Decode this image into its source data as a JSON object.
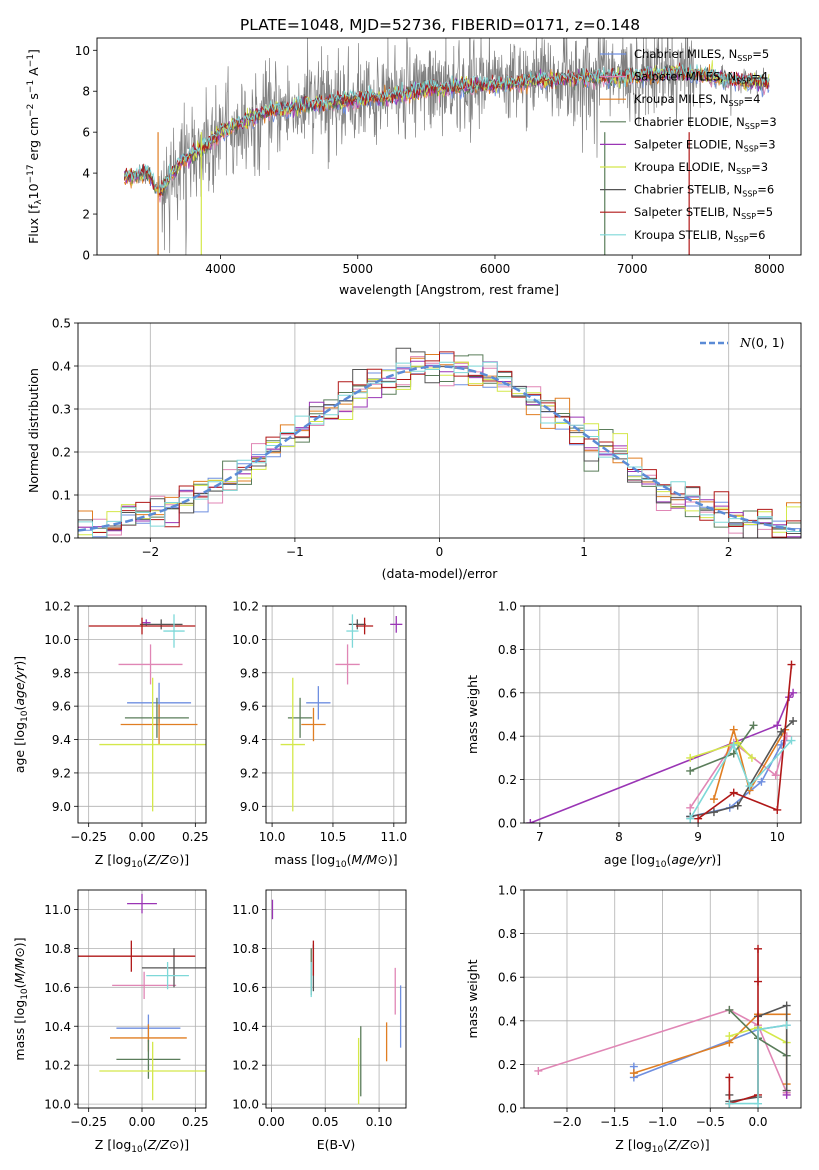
{
  "title": "PLATE=1048, MJD=52736, FIBERID=0171, z=0.148",
  "colors": {
    "Chabrier MILES": "#6f8fe0",
    "Salpeter MILES": "#e086b5",
    "Kroupa MILES": "#e07e22",
    "Chabrier ELODIE": "#5a7d5a",
    "Salpeter ELODIE": "#9a35b5",
    "Kroupa ELODIE": "#d4e84a",
    "Chabrier STELIB": "#555555",
    "Salpeter STELIB": "#b01818",
    "Kroupa STELIB": "#7ed8d8",
    "data": "#808080",
    "normal": "#5b8bd6"
  },
  "chart_data": [
    {
      "id": "spectrum",
      "type": "line",
      "xlabel": "wavelength [Angstrom, rest frame]",
      "ylabel_parts": [
        "Flux [f",
        "λ",
        "10",
        "−17",
        " erg cm",
        "−2",
        " s",
        "−1",
        " A",
        "−1",
        "]"
      ],
      "xlim": [
        3100,
        8230
      ],
      "ylim": [
        0,
        10.6
      ],
      "xticks": [
        4000,
        5000,
        6000,
        7000,
        8000
      ],
      "yticks": [
        0,
        2,
        4,
        6,
        8,
        10
      ],
      "continuum": [
        [
          3300,
          3.8
        ],
        [
          3480,
          4.0
        ],
        [
          3550,
          3.0
        ],
        [
          3700,
          4.5
        ],
        [
          3900,
          5.3
        ],
        [
          4000,
          6.0
        ],
        [
          4300,
          6.9
        ],
        [
          4600,
          7.3
        ],
        [
          5000,
          7.6
        ],
        [
          5300,
          7.8
        ],
        [
          5500,
          8.1
        ],
        [
          6000,
          8.3
        ],
        [
          6500,
          8.6
        ],
        [
          7000,
          8.7
        ],
        [
          7300,
          8.9
        ],
        [
          7500,
          8.8
        ],
        [
          7800,
          8.5
        ],
        [
          8000,
          8.4
        ]
      ],
      "legend": [
        {
          "sub": "Chabrier MILES, N",
          "n": "5"
        },
        {
          "sub": "Salpeter MILES, N",
          "n": "4"
        },
        {
          "sub": "Kroupa MILES, N",
          "n": "4"
        },
        {
          "sub": "Chabrier ELODIE, N",
          "n": "3"
        },
        {
          "sub": "Salpeter ELODIE, N",
          "n": "3"
        },
        {
          "sub": "Kroupa ELODIE, N",
          "n": "3"
        },
        {
          "sub": "Chabrier STELIB, N",
          "n": "6"
        },
        {
          "sub": "Salpeter STELIB, N",
          "n": "5"
        },
        {
          "sub": "Kroupa STELIB, N",
          "n": "6"
        }
      ],
      "legend_sub": "SSP",
      "legend_models": [
        "Chabrier MILES",
        "Salpeter MILES",
        "Kroupa MILES",
        "Chabrier ELODIE",
        "Salpeter ELODIE",
        "Kroupa ELODIE",
        "Chabrier STELIB",
        "Salpeter STELIB",
        "Kroupa STELIB"
      ],
      "legend_placement": "top-right"
    },
    {
      "id": "residuals",
      "type": "histogram",
      "xlabel": "(data-model)/error",
      "ylabel": "Normed distribution",
      "xlim": [
        -2.5,
        2.5
      ],
      "ylim": [
        0,
        0.5
      ],
      "xticks": [
        -2,
        -1,
        0,
        1,
        2
      ],
      "yticks": [
        0.0,
        0.1,
        0.2,
        0.3,
        0.4,
        0.5
      ],
      "bin_width": 0.1,
      "legend_label": "N(0, 1)",
      "grid": true
    },
    {
      "id": "z-age",
      "type": "errorbar",
      "xlabel": "Z [log10(Z/Z⊙)]",
      "ylabel": "age  [log10(age/yr)]",
      "xlim": [
        -0.3,
        0.3
      ],
      "ylim": [
        8.9,
        10.2
      ],
      "xticks": [
        -0.25,
        0.0,
        0.25
      ],
      "yticks": [
        9.0,
        9.2,
        9.4,
        9.6,
        9.8,
        10.0,
        10.2
      ],
      "points": [
        {
          "model": "Chabrier MILES",
          "x": 0.08,
          "xe": 0.15,
          "y": 9.62,
          "ye": 0.12
        },
        {
          "model": "Salpeter MILES",
          "x": 0.04,
          "xe": 0.15,
          "y": 9.85,
          "ye": 0.12
        },
        {
          "model": "Kroupa MILES",
          "x": 0.08,
          "xe": 0.18,
          "y": 9.49,
          "ye": 0.12
        },
        {
          "model": "Chabrier ELODIE",
          "x": 0.07,
          "xe": 0.15,
          "y": 9.53,
          "ye": 0.12
        },
        {
          "model": "Salpeter ELODIE",
          "x": 0.02,
          "xe": 0.02,
          "y": 10.1,
          "ye": 0.02
        },
        {
          "model": "Kroupa ELODIE",
          "x": 0.05,
          "xe": 0.25,
          "y": 9.37,
          "ye": 0.4
        },
        {
          "model": "Chabrier STELIB",
          "x": 0.09,
          "xe": 0.1,
          "y": 10.09,
          "ye": 0.03
        },
        {
          "model": "Salpeter STELIB",
          "x": 0.0,
          "xe": 0.25,
          "y": 10.08,
          "ye": 0.05
        },
        {
          "model": "Kroupa STELIB",
          "x": 0.15,
          "xe": 0.05,
          "y": 10.05,
          "ye": 0.1
        }
      ]
    },
    {
      "id": "mass-age",
      "type": "errorbar",
      "xlabel": "mass [log10(M/M⊙)]",
      "ylabel": "",
      "xlim": [
        9.95,
        11.1
      ],
      "ylim": [
        8.9,
        10.2
      ],
      "xticks": [
        10.0,
        10.5,
        11.0
      ],
      "yticks": [
        9.0,
        9.2,
        9.4,
        9.6,
        9.8,
        10.0,
        10.2
      ],
      "points": [
        {
          "model": "Chabrier MILES",
          "x": 10.38,
          "xe": 0.1,
          "y": 9.62,
          "ye": 0.1
        },
        {
          "model": "Salpeter MILES",
          "x": 10.62,
          "xe": 0.1,
          "y": 9.85,
          "ye": 0.12
        },
        {
          "model": "Kroupa MILES",
          "x": 10.34,
          "xe": 0.1,
          "y": 9.49,
          "ye": 0.1
        },
        {
          "model": "Chabrier ELODIE",
          "x": 10.23,
          "xe": 0.1,
          "y": 9.53,
          "ye": 0.12
        },
        {
          "model": "Salpeter ELODIE",
          "x": 11.02,
          "xe": 0.05,
          "y": 10.09,
          "ye": 0.05
        },
        {
          "model": "Kroupa ELODIE",
          "x": 10.17,
          "xe": 0.1,
          "y": 9.37,
          "ye": 0.4
        },
        {
          "model": "Chabrier STELIB",
          "x": 10.7,
          "xe": 0.07,
          "y": 10.09,
          "ye": 0.03
        },
        {
          "model": "Salpeter STELIB",
          "x": 10.76,
          "xe": 0.07,
          "y": 10.08,
          "ye": 0.05
        },
        {
          "model": "Kroupa STELIB",
          "x": 10.66,
          "xe": 0.05,
          "y": 10.05,
          "ye": 0.1
        }
      ]
    },
    {
      "id": "age-weight",
      "type": "line",
      "xlabel": "age  [log10(age/yr)]",
      "ylabel": "mass weight",
      "xlim": [
        6.8,
        10.3
      ],
      "ylim": [
        0,
        1
      ],
      "xticks": [
        7,
        8,
        9,
        10
      ],
      "yticks": [
        0.0,
        0.2,
        0.4,
        0.6,
        0.8,
        1.0
      ],
      "lines": [
        {
          "model": "Salpeter ELODIE",
          "x": [
            6.88,
            10.0,
            10.15,
            10.2
          ],
          "y": [
            0.0,
            0.45,
            0.58,
            0.6
          ]
        },
        {
          "model": "Chabrier MILES",
          "x": [
            8.9,
            9.4,
            9.8,
            10.05,
            10.1
          ],
          "y": [
            0.03,
            0.07,
            0.19,
            0.36,
            0.38
          ]
        },
        {
          "model": "Salpeter MILES",
          "x": [
            8.9,
            9.45,
            9.98,
            10.12
          ],
          "y": [
            0.07,
            0.37,
            0.22,
            0.4
          ]
        },
        {
          "model": "Kroupa MILES",
          "x": [
            9.2,
            9.45,
            9.65,
            10.1
          ],
          "y": [
            0.11,
            0.43,
            0.15,
            0.43
          ]
        },
        {
          "model": "Chabrier ELODIE",
          "x": [
            8.9,
            9.45,
            9.7
          ],
          "y": [
            0.24,
            0.32,
            0.45
          ]
        },
        {
          "model": "Kroupa ELODIE",
          "x": [
            8.9,
            9.5,
            9.68
          ],
          "y": [
            0.3,
            0.37,
            0.3
          ]
        },
        {
          "model": "Chabrier STELIB",
          "x": [
            8.9,
            9.2,
            9.5,
            10.05,
            10.2
          ],
          "y": [
            0.03,
            0.05,
            0.08,
            0.42,
            0.47
          ]
        },
        {
          "model": "Salpeter STELIB",
          "x": [
            9.0,
            9.45,
            10.0,
            10.18
          ],
          "y": [
            0.02,
            0.14,
            0.06,
            0.73
          ]
        },
        {
          "model": "Kroupa STELIB",
          "x": [
            8.9,
            9.45,
            9.65,
            10.18
          ],
          "y": [
            0.02,
            0.36,
            0.17,
            0.38
          ]
        }
      ]
    },
    {
      "id": "z-mass",
      "type": "errorbar",
      "xlabel": "Z [log10(Z/Z⊙)]",
      "ylabel": "mass [log10(M/M⊙)]",
      "xlim": [
        -0.3,
        0.3
      ],
      "ylim": [
        9.98,
        11.1
      ],
      "xticks": [
        -0.25,
        0.0,
        0.25
      ],
      "yticks": [
        10.0,
        10.2,
        10.4,
        10.6,
        10.8,
        11.0
      ],
      "points": [
        {
          "model": "Chabrier MILES",
          "x": 0.03,
          "xe": 0.15,
          "y": 10.39,
          "ye": 0.07
        },
        {
          "model": "Salpeter MILES",
          "x": 0.01,
          "xe": 0.15,
          "y": 10.61,
          "ye": 0.07
        },
        {
          "model": "Kroupa MILES",
          "x": 0.03,
          "xe": 0.18,
          "y": 10.34,
          "ye": 0.07
        },
        {
          "model": "Chabrier ELODIE",
          "x": 0.03,
          "xe": 0.15,
          "y": 10.23,
          "ye": 0.1
        },
        {
          "model": "Salpeter ELODIE",
          "x": 0.0,
          "xe": 0.07,
          "y": 11.03,
          "ye": 0.05
        },
        {
          "model": "Kroupa ELODIE",
          "x": 0.05,
          "xe": 0.25,
          "y": 10.17,
          "ye": 0.15
        },
        {
          "model": "Chabrier STELIB",
          "x": 0.15,
          "xe": 0.15,
          "y": 10.7,
          "ye": 0.1
        },
        {
          "model": "Salpeter STELIB",
          "x": -0.05,
          "xe": 0.3,
          "y": 10.76,
          "ye": 0.08
        },
        {
          "model": "Kroupa STELIB",
          "x": 0.12,
          "xe": 0.1,
          "y": 10.66,
          "ye": 0.07
        }
      ]
    },
    {
      "id": "ebv-mass",
      "type": "errorbar",
      "xlabel": "E(B-V)",
      "ylabel": "",
      "xlim": [
        -0.005,
        0.125
      ],
      "ylim": [
        9.98,
        11.1
      ],
      "xticks": [
        0.0,
        0.05,
        0.1
      ],
      "yticks": [
        10.0,
        10.2,
        10.4,
        10.6,
        10.8,
        11.0
      ],
      "points": [
        {
          "model": "Chabrier MILES",
          "x": 0.12,
          "xe": 0.0,
          "y": 10.45,
          "ye": 0.16
        },
        {
          "model": "Salpeter MILES",
          "x": 0.115,
          "xe": 0.0,
          "y": 10.58,
          "ye": 0.12
        },
        {
          "model": "Kroupa MILES",
          "x": 0.107,
          "xe": 0.0,
          "y": 10.32,
          "ye": 0.1
        },
        {
          "model": "Chabrier ELODIE",
          "x": 0.037,
          "xe": 0.0,
          "y": 10.68,
          "ye": 0.12
        },
        {
          "model": "Salpeter ELODIE",
          "x": 0.001,
          "xe": 0.0,
          "y": 11.0,
          "ye": 0.05
        },
        {
          "model": "Kroupa ELODIE",
          "x": 0.081,
          "xe": 0.0,
          "y": 10.17,
          "ye": 0.17
        },
        {
          "model": "Chabrier STELIB",
          "x": 0.039,
          "xe": 0.0,
          "y": 10.7,
          "ye": 0.12
        },
        {
          "model": "Salpeter STELIB",
          "x": 0.039,
          "xe": 0.0,
          "y": 10.75,
          "ye": 0.09
        },
        {
          "model": "Kroupa STELIB",
          "x": 0.037,
          "xe": 0.0,
          "y": 10.64,
          "ye": 0.09
        },
        {
          "model": "Chabrier ELODIE",
          "x": 0.083,
          "xe": 0.0,
          "y": 10.22,
          "ye": 0.18
        }
      ]
    },
    {
      "id": "z-weight",
      "type": "line",
      "xlabel": "Z [log10(Z/Z⊙)]",
      "ylabel": "mass weight",
      "xlim": [
        -2.45,
        0.45
      ],
      "ylim": [
        0,
        1
      ],
      "xticks": [
        -2.0,
        -1.5,
        -1.0,
        -0.5,
        0.0
      ],
      "yticks": [
        0.0,
        0.2,
        0.4,
        0.6,
        0.8,
        1.0
      ],
      "lines": [
        {
          "model": "Salpeter MILES",
          "x": [
            -2.3,
            -0.3,
            0.0,
            0.3
          ],
          "y": [
            0.17,
            0.45,
            0.38,
            0.07
          ]
        },
        {
          "model": "Chabrier MILES",
          "x": [
            -1.3,
            -1.3,
            0.0,
            0.3
          ],
          "y": [
            0.19,
            0.14,
            0.36,
            0.38
          ]
        },
        {
          "model": "Kroupa MILES",
          "x": [
            -1.3,
            -0.3,
            0.0,
            0.3,
            0.3
          ],
          "y": [
            0.16,
            0.3,
            0.43,
            0.43,
            0.11
          ]
        },
        {
          "model": "Kroupa ELODIE",
          "x": [
            -0.3,
            0.0,
            0.3
          ],
          "y": [
            0.33,
            0.37,
            0.3
          ]
        },
        {
          "model": "Chabrier ELODIE",
          "x": [
            -0.3,
            0.0,
            0.3
          ],
          "y": [
            0.45,
            0.32,
            0.24
          ]
        },
        {
          "model": "Chabrier STELIB",
          "x": [
            -0.3,
            -0.3,
            0.0,
            0.0,
            0.3,
            0.3
          ],
          "y": [
            0.06,
            0.03,
            0.05,
            0.42,
            0.47,
            0.08
          ]
        },
        {
          "model": "Salpeter STELIB",
          "x": [
            -0.3,
            -0.3,
            0.0,
            0.0,
            0.0
          ],
          "y": [
            0.14,
            0.02,
            0.06,
            0.58,
            0.73
          ]
        },
        {
          "model": "Kroupa STELIB",
          "x": [
            -0.3,
            0.0,
            0.0,
            0.3
          ],
          "y": [
            0.02,
            0.02,
            0.36,
            0.38
          ]
        },
        {
          "model": "Salpeter ELODIE",
          "x": [
            0.3
          ],
          "y": [
            0.06
          ]
        }
      ]
    }
  ]
}
